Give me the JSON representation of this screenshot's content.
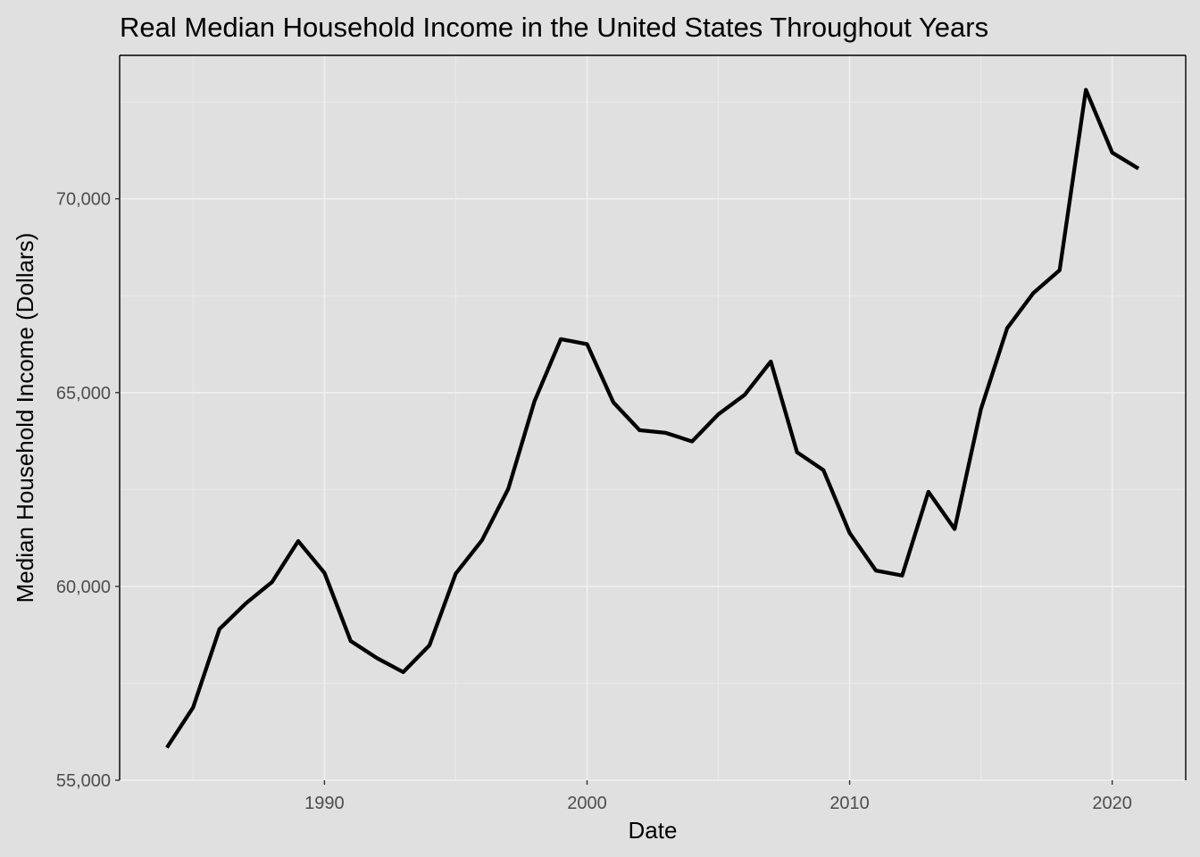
{
  "chart_data": {
    "type": "line",
    "title": "Real Median Household Income in the United States Throughout Years",
    "xlabel": "Date",
    "ylabel": "Median Household Income (Dollars)",
    "xlim": [
      1982.2,
      2022.8
    ],
    "ylim": [
      55000,
      73700
    ],
    "x_ticks": [
      1990,
      2000,
      2010,
      2020
    ],
    "x_tick_labels": [
      "1990",
      "2000",
      "2010",
      "2020"
    ],
    "y_ticks": [
      55000,
      60000,
      65000,
      70000
    ],
    "y_tick_labels": [
      "55,000",
      "60,000",
      "65,000",
      "70,000"
    ],
    "grid": true,
    "legend": "none",
    "colors": {
      "background": "#e0e0e0",
      "grid_major": "#f0f0f0",
      "grid_minor": "#e9e9e9",
      "line": "#000000",
      "axis": "#000000",
      "tick_label": "#4d4d4d"
    },
    "series": [
      {
        "x": [
          1984,
          1985,
          1986,
          1987,
          1988,
          1989,
          1990,
          1991,
          1992,
          1993,
          1994,
          1995,
          1996,
          1997,
          1998,
          1999,
          2000,
          2001,
          2002,
          2003,
          2004,
          2005,
          2006,
          2007,
          2008,
          2009,
          2010,
          2011,
          2012,
          2013,
          2014,
          2015,
          2016,
          2017,
          2018,
          2019,
          2020,
          2021
        ],
        "values": [
          55840,
          56880,
          58900,
          59560,
          60110,
          61170,
          60350,
          58590,
          58150,
          57790,
          58480,
          60330,
          61190,
          62520,
          64780,
          66380,
          66250,
          64750,
          64030,
          63960,
          63740,
          64440,
          64940,
          65800,
          63460,
          63000,
          61380,
          60410,
          60280,
          62440,
          61480,
          64570,
          66660,
          67570,
          68160,
          72810,
          71190,
          70780
        ]
      }
    ]
  }
}
